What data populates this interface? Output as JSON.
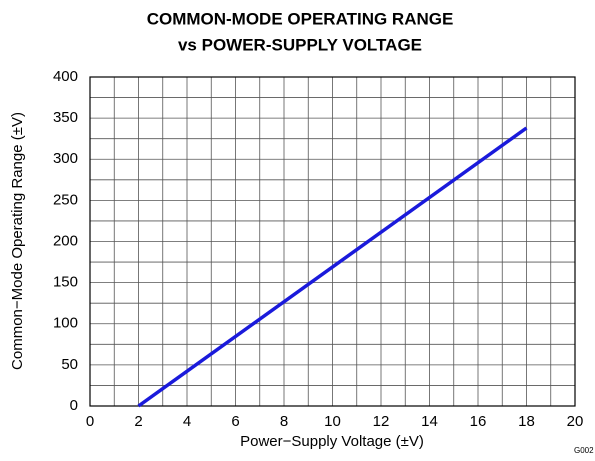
{
  "chart_data": {
    "type": "line",
    "title": [
      "COMMON-MODE OPERATING RANGE",
      "vs POWER-SUPPLY VOLTAGE"
    ],
    "x_label": "Power−Supply Voltage (±V)",
    "y_label": "Common−Mode Operating Range (±V)",
    "annotation": "G002",
    "x": [
      2,
      18
    ],
    "series": [
      {
        "name": "Common-Mode Operating Range",
        "color": "#1a1adb",
        "values": [
          0,
          338
        ]
      }
    ],
    "xlim": [
      0,
      20
    ],
    "ylim": [
      0,
      400
    ],
    "xticks": [
      0,
      2,
      4,
      6,
      8,
      10,
      12,
      14,
      16,
      18,
      20
    ],
    "yticks": [
      0,
      50,
      100,
      150,
      200,
      250,
      300,
      350,
      400
    ],
    "xminorticks": [
      1,
      3,
      5,
      7,
      9,
      11,
      13,
      15,
      17,
      19
    ],
    "yminorticks": [
      25,
      75,
      125,
      175,
      225,
      275,
      325,
      375
    ],
    "grid": true
  }
}
